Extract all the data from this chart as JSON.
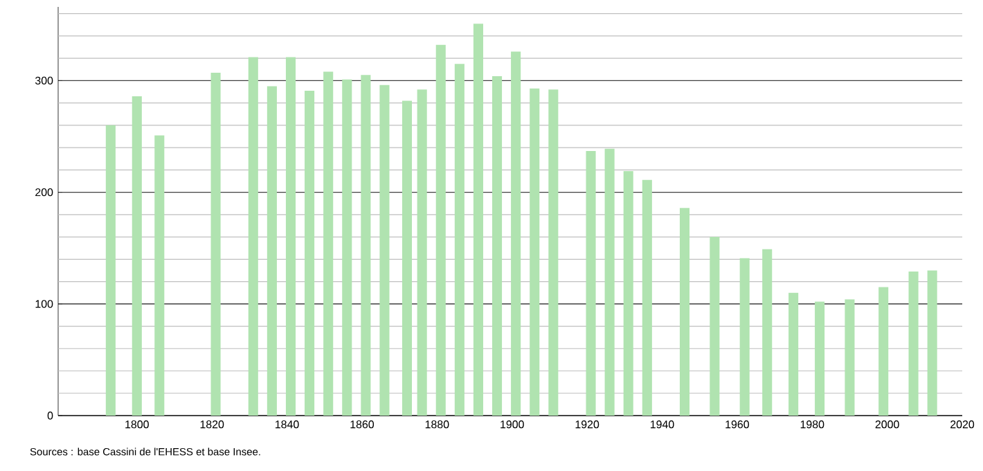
{
  "chart_data": {
    "type": "bar",
    "x": [
      1793,
      1800,
      1806,
      1821,
      1831,
      1836,
      1841,
      1846,
      1851,
      1856,
      1861,
      1866,
      1872,
      1876,
      1881,
      1886,
      1891,
      1896,
      1901,
      1906,
      1911,
      1921,
      1926,
      1931,
      1936,
      1946,
      1954,
      1962,
      1968,
      1975,
      1982,
      1990,
      1999,
      2007,
      2012
    ],
    "values": [
      260,
      286,
      251,
      307,
      321,
      295,
      321,
      291,
      308,
      301,
      305,
      296,
      282,
      292,
      332,
      315,
      351,
      304,
      326,
      293,
      292,
      237,
      239,
      219,
      211,
      186,
      160,
      141,
      149,
      110,
      102,
      104,
      115,
      129,
      130
    ],
    "color": "#b0e3b0",
    "xlim": [
      1779,
      2020
    ],
    "xticks": [
      1800,
      1820,
      1840,
      1860,
      1880,
      1900,
      1920,
      1940,
      1960,
      1980,
      2000,
      2020
    ],
    "ylim": [
      0,
      366
    ],
    "yticks": [
      0,
      {
        "value": 20,
        "label": null
      },
      {
        "value": 40,
        "label": null
      },
      {
        "value": 60,
        "label": null
      },
      {
        "value": 80,
        "label": null
      },
      100,
      {
        "value": 120,
        "label": null
      },
      {
        "value": 140,
        "label": null
      },
      {
        "value": 160,
        "label": null
      },
      {
        "value": 180,
        "label": null
      },
      200,
      {
        "value": 220,
        "label": null
      },
      {
        "value": 240,
        "label": null
      },
      {
        "value": 260,
        "label": null
      },
      {
        "value": 280,
        "label": null
      },
      300,
      {
        "value": 320,
        "label": null
      },
      {
        "value": 340,
        "label": null
      },
      {
        "value": 360,
        "label": null
      }
    ],
    "grid": "y",
    "annotations": [
      "Sources : base Cassini de l'EHESS et base Insee."
    ]
  }
}
